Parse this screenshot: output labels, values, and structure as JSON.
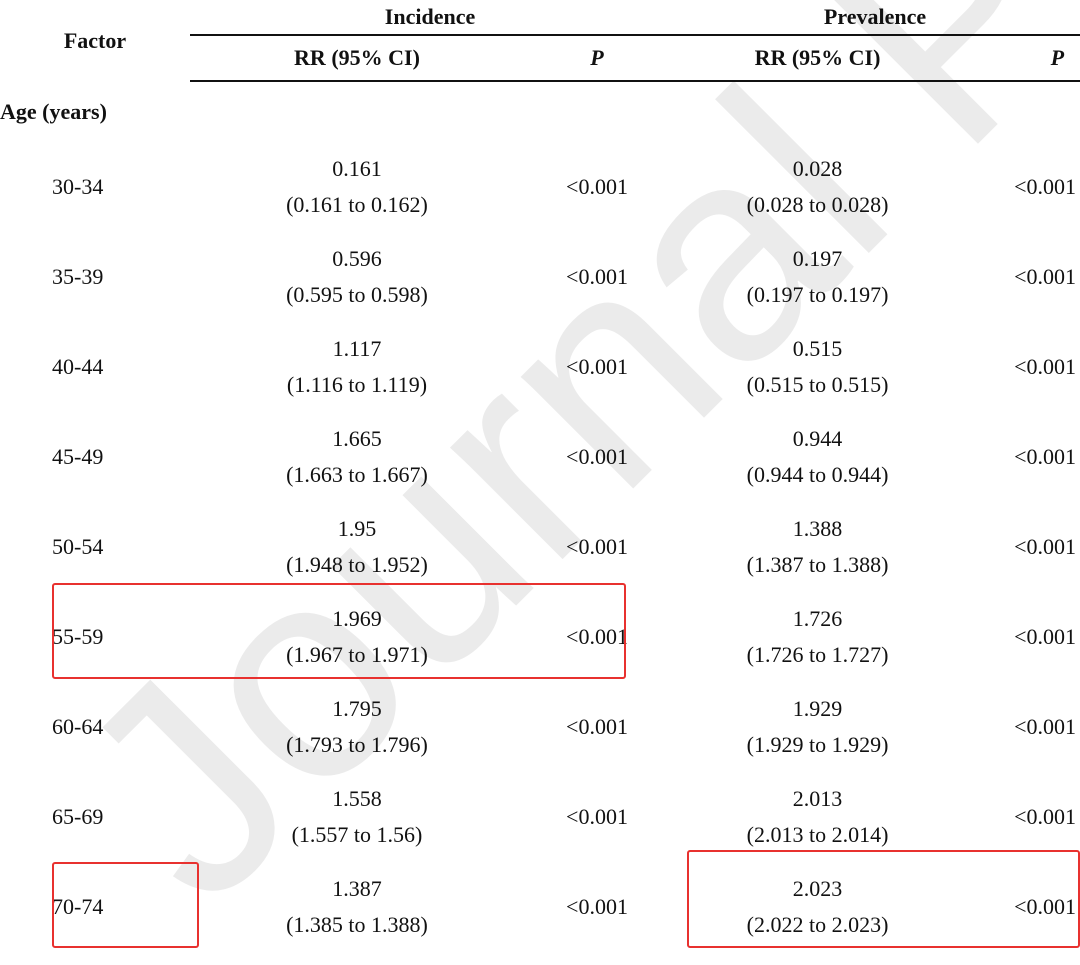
{
  "watermark": "Journal Pre-proof",
  "headers": {
    "factor": "Factor",
    "incidence": "Incidence",
    "prevalence": "Prevalence",
    "rr_ci": "RR (95% CI)",
    "p": "P"
  },
  "section": "Age (years)",
  "rows": [
    {
      "age": "30-34",
      "inc_rr": "0.161",
      "inc_ci": "(0.161 to 0.162)",
      "inc_p": "<0.001",
      "prev_rr": "0.028",
      "prev_ci": "(0.028 to 0.028)",
      "prev_p": "<0.001"
    },
    {
      "age": "35-39",
      "inc_rr": "0.596",
      "inc_ci": "(0.595 to 0.598)",
      "inc_p": "<0.001",
      "prev_rr": "0.197",
      "prev_ci": "(0.197 to 0.197)",
      "prev_p": "<0.001"
    },
    {
      "age": "40-44",
      "inc_rr": "1.117",
      "inc_ci": "(1.116 to 1.119)",
      "inc_p": "<0.001",
      "prev_rr": "0.515",
      "prev_ci": "(0.515 to 0.515)",
      "prev_p": "<0.001"
    },
    {
      "age": "45-49",
      "inc_rr": "1.665",
      "inc_ci": "(1.663 to 1.667)",
      "inc_p": "<0.001",
      "prev_rr": "0.944",
      "prev_ci": "(0.944 to 0.944)",
      "prev_p": "<0.001"
    },
    {
      "age": "50-54",
      "inc_rr": "1.95",
      "inc_ci": "(1.948 to 1.952)",
      "inc_p": "<0.001",
      "prev_rr": "1.388",
      "prev_ci": "(1.387 to 1.388)",
      "prev_p": "<0.001"
    },
    {
      "age": "55-59",
      "inc_rr": "1.969",
      "inc_ci": "(1.967 to 1.971)",
      "inc_p": "<0.001",
      "prev_rr": "1.726",
      "prev_ci": "(1.726 to 1.727)",
      "prev_p": "<0.001"
    },
    {
      "age": "60-64",
      "inc_rr": "1.795",
      "inc_ci": "(1.793 to 1.796)",
      "inc_p": "<0.001",
      "prev_rr": "1.929",
      "prev_ci": "(1.929 to 1.929)",
      "prev_p": "<0.001"
    },
    {
      "age": "65-69",
      "inc_rr": "1.558",
      "inc_ci": "(1.557 to 1.56)",
      "inc_p": "<0.001",
      "prev_rr": "2.013",
      "prev_ci": "(2.013 to 2.014)",
      "prev_p": "<0.001"
    },
    {
      "age": "70-74",
      "inc_rr": "1.387",
      "inc_ci": "(1.385 to 1.388)",
      "inc_p": "<0.001",
      "prev_rr": "2.023",
      "prev_ci": "(2.022 to 2.023)",
      "prev_p": "<0.001"
    }
  ],
  "highlight_color": "#e8312f"
}
